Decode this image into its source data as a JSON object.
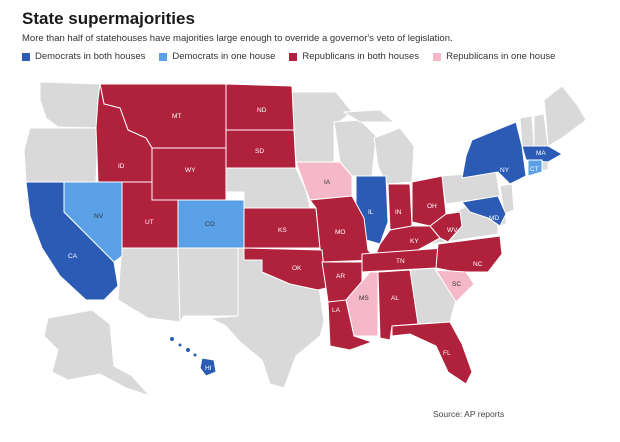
{
  "header": {
    "title": "State supermajorities",
    "subtitle": "More than half of statehouses have majorities large enough to override a governor's veto of legislation."
  },
  "legend": [
    {
      "label": "Democrats in both houses",
      "color": "#2b5bb5"
    },
    {
      "label": "Democrats in one house",
      "color": "#5aa0e6"
    },
    {
      "label": "Republicans in both houses",
      "color": "#b0213c"
    },
    {
      "label": "Republicans in one house",
      "color": "#f4b8c8"
    }
  ],
  "colors": {
    "dem_both": "#2b5bb5",
    "dem_one": "#5aa0e6",
    "rep_both": "#b0213c",
    "rep_one": "#f4b8c8",
    "none": "#d9d9d9",
    "border": "#ffffff"
  },
  "states": [
    {
      "abbr": "MT",
      "category": "rep_both"
    },
    {
      "abbr": "ND",
      "category": "rep_both"
    },
    {
      "abbr": "ID",
      "category": "rep_both"
    },
    {
      "abbr": "WY",
      "category": "rep_both"
    },
    {
      "abbr": "SD",
      "category": "rep_both"
    },
    {
      "abbr": "IA",
      "category": "rep_one"
    },
    {
      "abbr": "NV",
      "category": "dem_one"
    },
    {
      "abbr": "UT",
      "category": "rep_both"
    },
    {
      "abbr": "CO",
      "category": "dem_one"
    },
    {
      "abbr": "KS",
      "category": "rep_both"
    },
    {
      "abbr": "IL",
      "category": "dem_both"
    },
    {
      "abbr": "IN",
      "category": "rep_both"
    },
    {
      "abbr": "OH",
      "category": "rep_both"
    },
    {
      "abbr": "MO",
      "category": "rep_both"
    },
    {
      "abbr": "KY",
      "category": "rep_both"
    },
    {
      "abbr": "WV",
      "category": "rep_both"
    },
    {
      "abbr": "CA",
      "category": "dem_both"
    },
    {
      "abbr": "OK",
      "category": "rep_both"
    },
    {
      "abbr": "AR",
      "category": "rep_both"
    },
    {
      "abbr": "TN",
      "category": "rep_both"
    },
    {
      "abbr": "NC",
      "category": "rep_both"
    },
    {
      "abbr": "SC",
      "category": "rep_one"
    },
    {
      "abbr": "MS",
      "category": "rep_one"
    },
    {
      "abbr": "AL",
      "category": "rep_both"
    },
    {
      "abbr": "LA",
      "category": "rep_both"
    },
    {
      "abbr": "FL",
      "category": "rep_both"
    },
    {
      "abbr": "NY",
      "category": "dem_both"
    },
    {
      "abbr": "MA",
      "category": "dem_both"
    },
    {
      "abbr": "CT",
      "category": "dem_one"
    },
    {
      "abbr": "MD",
      "category": "dem_both"
    },
    {
      "abbr": "HI",
      "category": "dem_both"
    }
  ],
  "source": "Source: AP reports"
}
